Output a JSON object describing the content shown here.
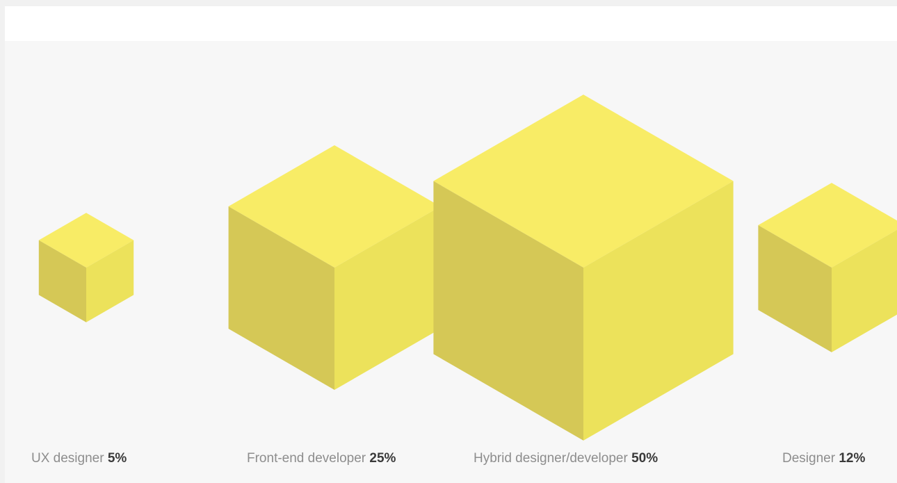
{
  "chart_data": {
    "type": "cube-area",
    "unit": "%",
    "colors": {
      "top": "#f8ec66",
      "left": "#d5c856",
      "right": "#ece25b"
    },
    "items": [
      {
        "name": "UX designer",
        "value": 5,
        "value_label": "5%"
      },
      {
        "name": "Front-end developer",
        "value": 25,
        "value_label": "25%"
      },
      {
        "name": "Hybrid designer/developer",
        "value": 50,
        "value_label": "50%"
      },
      {
        "name": "Designer",
        "value": 12,
        "value_label": "12%"
      }
    ]
  }
}
